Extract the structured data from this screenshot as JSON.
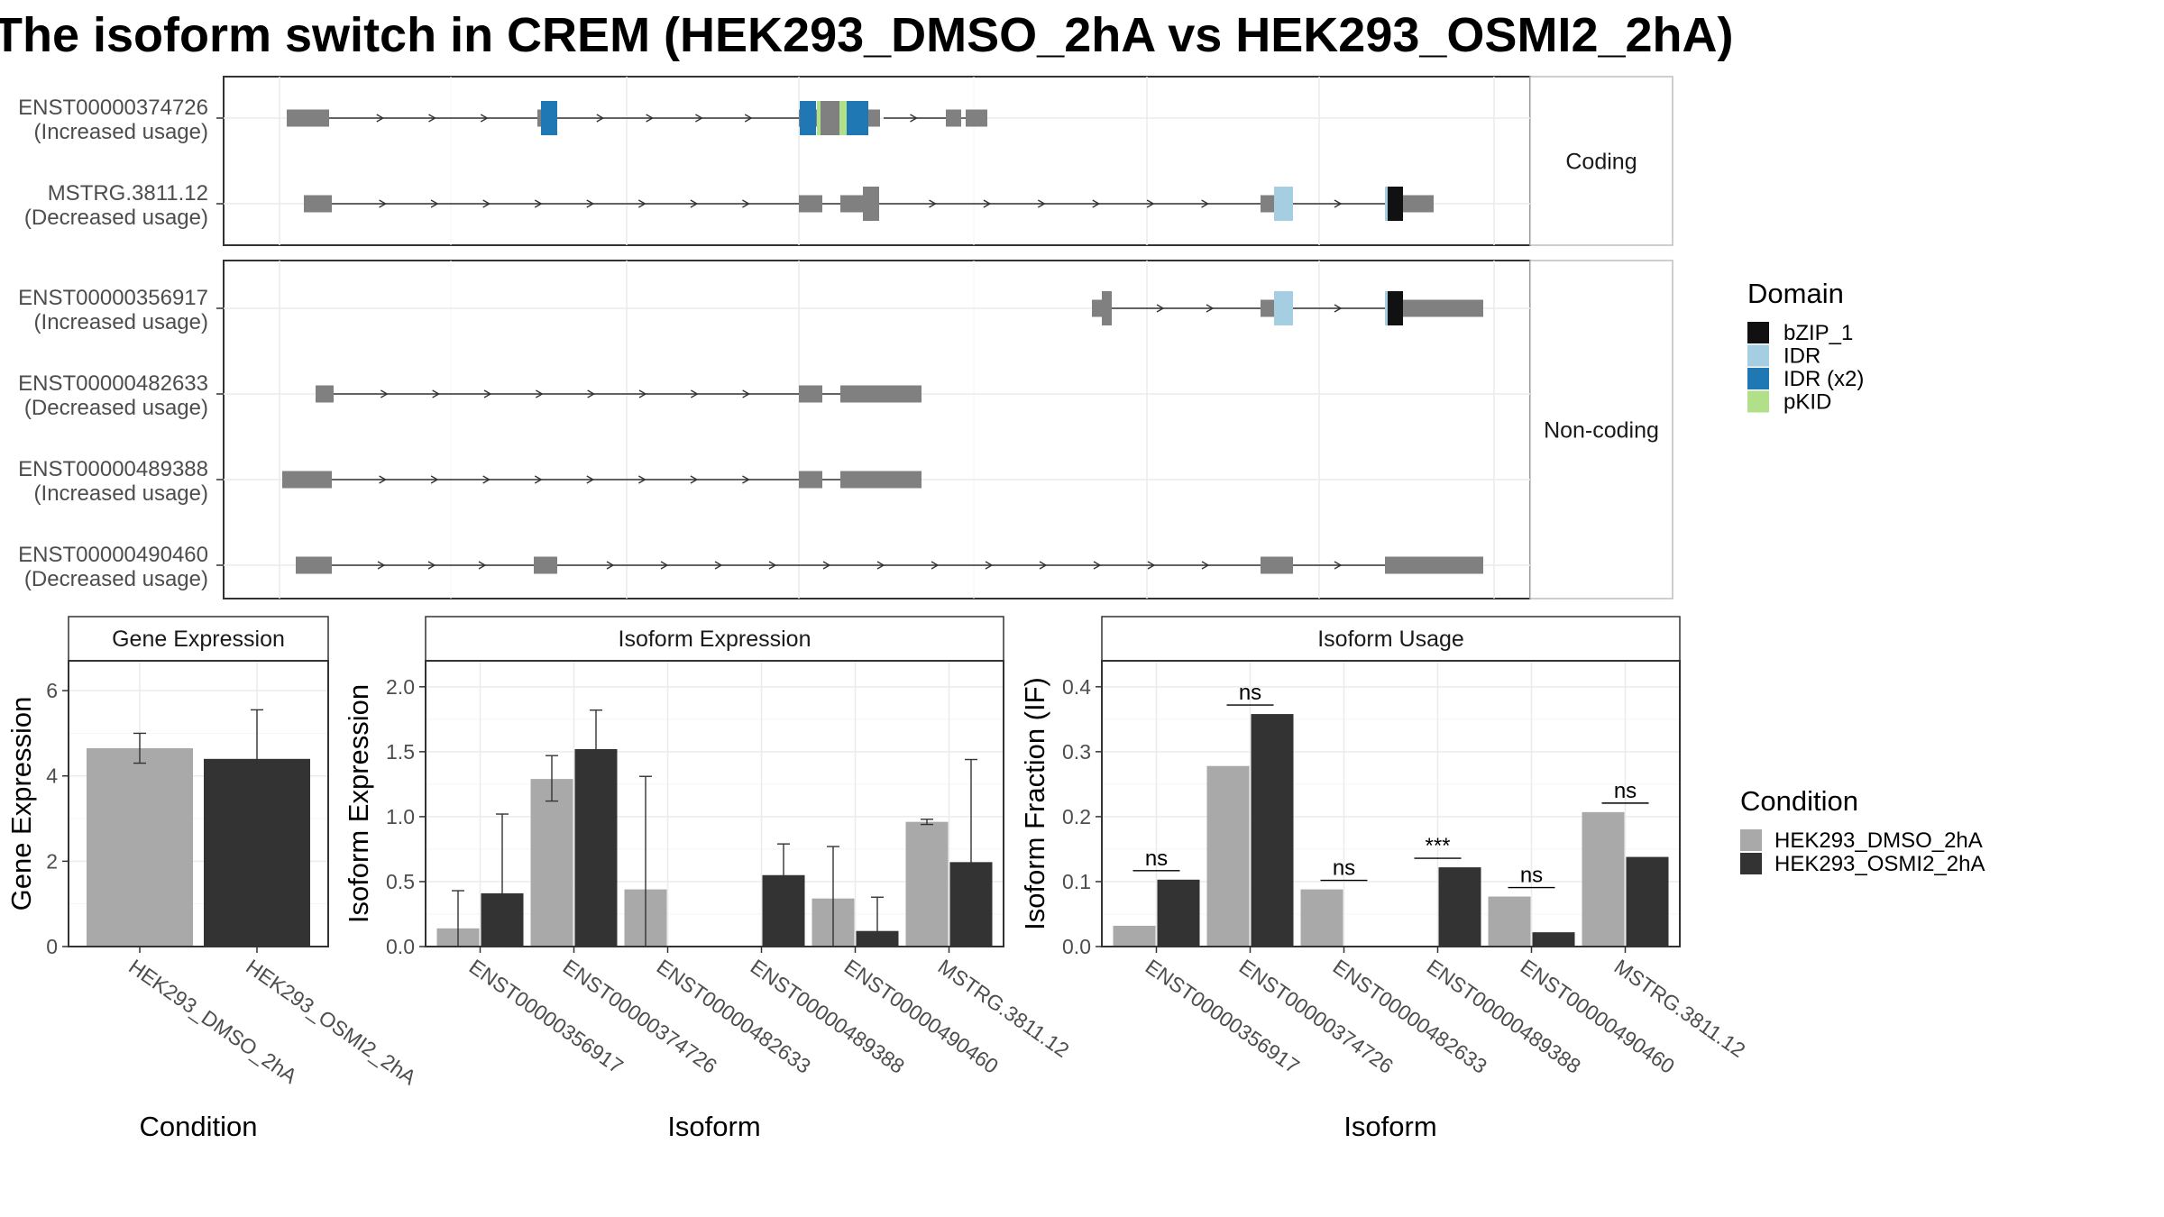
{
  "title": "The isoform switch in CREM (HEK293_DMSO_2hA vs HEK293_OSMI2_2hA)",
  "colors": {
    "exon": "#808080",
    "bZIP_1": "#111111",
    "IDR": "#a6cee3",
    "IDR (x2)": "#1f78b4",
    "pKID": "#b2df8a",
    "dmso": "#a9a9a9",
    "osmi": "#333333"
  },
  "structure": {
    "facets": [
      "Coding",
      "Non-coding"
    ],
    "transcripts": [
      {
        "id": "ENST00000374726",
        "usage": "(Increased usage)",
        "facet": 0
      },
      {
        "id": "MSTRG.3811.12",
        "usage": "(Decreased usage)",
        "facet": 0
      },
      {
        "id": "ENST00000356917",
        "usage": "(Increased usage)",
        "facet": 1
      },
      {
        "id": "ENST00000482633",
        "usage": "(Decreased usage)",
        "facet": 1
      },
      {
        "id": "ENST00000489388",
        "usage": "(Increased usage)",
        "facet": 1
      },
      {
        "id": "ENST00000490460",
        "usage": "(Decreased usage)",
        "facet": 1
      }
    ]
  },
  "legend_domain": {
    "title": "Domain",
    "items": [
      "bZIP_1",
      "IDR",
      "IDR (x2)",
      "pKID"
    ]
  },
  "legend_condition": {
    "title": "Condition",
    "items": [
      "HEK293_DMSO_2hA",
      "HEK293_OSMI2_2hA"
    ]
  },
  "chart_data": [
    {
      "type": "bar",
      "title": "Gene Expression",
      "xlabel": "Condition",
      "ylabel": "Gene Expression",
      "ylim": [
        0,
        6.7
      ],
      "yticks": [
        0,
        2,
        4,
        6
      ],
      "categories": [
        "HEK293_DMSO_2hA",
        "HEK293_OSMI2_2hA"
      ],
      "values": [
        4.65,
        4.4
      ],
      "errors": [
        [
          4.3,
          5.0
        ],
        [
          3.25,
          5.55
        ]
      ]
    },
    {
      "type": "bar",
      "title": "Isoform Expression",
      "xlabel": "Isoform",
      "ylabel": "Isoform Expression",
      "ylim": [
        0,
        2.2
      ],
      "yticks": [
        0.0,
        0.5,
        1.0,
        1.5,
        2.0
      ],
      "categories": [
        "ENST00000356917",
        "ENST00000374726",
        "ENST00000482633",
        "ENST00000489388",
        "ENST00000490460",
        "MSTRG.3811.12"
      ],
      "series": [
        {
          "name": "HEK293_DMSO_2hA",
          "values": [
            0.14,
            1.29,
            0.44,
            0.0,
            0.37,
            0.96
          ],
          "errors": [
            [
              0.0,
              0.43
            ],
            [
              1.12,
              1.47
            ],
            [
              0.0,
              1.31
            ],
            [
              0.0,
              0.0
            ],
            [
              0.0,
              0.77
            ],
            [
              0.94,
              0.98
            ]
          ]
        },
        {
          "name": "HEK293_OSMI2_2hA",
          "values": [
            0.41,
            1.52,
            0.0,
            0.55,
            0.12,
            0.65
          ],
          "errors": [
            [
              0.0,
              1.02
            ],
            [
              1.22,
              1.82
            ],
            [
              0.0,
              0.0
            ],
            [
              0.32,
              0.79
            ],
            [
              0.0,
              0.38
            ],
            [
              0.0,
              1.44
            ]
          ]
        }
      ]
    },
    {
      "type": "bar",
      "title": "Isoform Usage",
      "xlabel": "Isoform",
      "ylabel": "Isoform Fraction (IF)",
      "ylim": [
        0,
        0.44
      ],
      "yticks": [
        0.0,
        0.1,
        0.2,
        0.3,
        0.4
      ],
      "categories": [
        "ENST00000356917",
        "ENST00000374726",
        "ENST00000482633",
        "ENST00000489388",
        "ENST00000490460",
        "MSTRG.3811.12"
      ],
      "series": [
        {
          "name": "HEK293_DMSO_2hA",
          "values": [
            0.032,
            0.278,
            0.088,
            0.0,
            0.077,
            0.207
          ]
        },
        {
          "name": "HEK293_OSMI2_2hA",
          "values": [
            0.103,
            0.358,
            0.0,
            0.122,
            0.022,
            0.138
          ]
        }
      ],
      "significance": [
        "ns",
        "ns",
        "ns",
        "***",
        "ns",
        "ns"
      ]
    }
  ]
}
